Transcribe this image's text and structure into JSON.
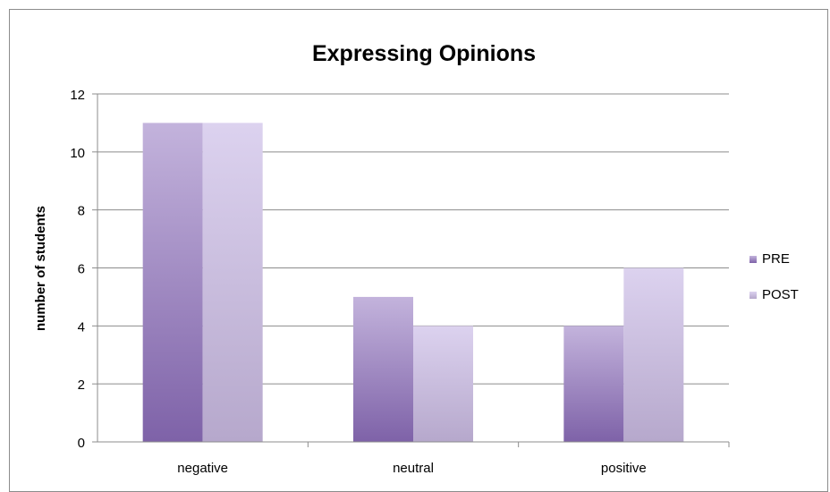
{
  "chart_data": {
    "type": "bar",
    "title": "Expressing Opinions",
    "xlabel": "",
    "ylabel": "number of students",
    "categories": [
      "negative",
      "neutral",
      "positive"
    ],
    "series": [
      {
        "name": "PRE",
        "values": [
          11,
          5,
          4
        ]
      },
      {
        "name": "POST",
        "values": [
          11,
          4,
          6
        ]
      }
    ],
    "ylim": [
      0,
      12
    ],
    "yticks": [
      "0",
      "2",
      "4",
      "6",
      "8",
      "10",
      "12"
    ],
    "grid": true,
    "legend_position": "right",
    "colors": {
      "PRE_top": "#c3b3dc",
      "PRE_bottom": "#7e62a8",
      "POST_top": "#dcd2ef",
      "POST_bottom": "#b6a8cc",
      "grid": "#8c8c8c",
      "axis": "#8c8c8c",
      "text": "#000000"
    }
  }
}
